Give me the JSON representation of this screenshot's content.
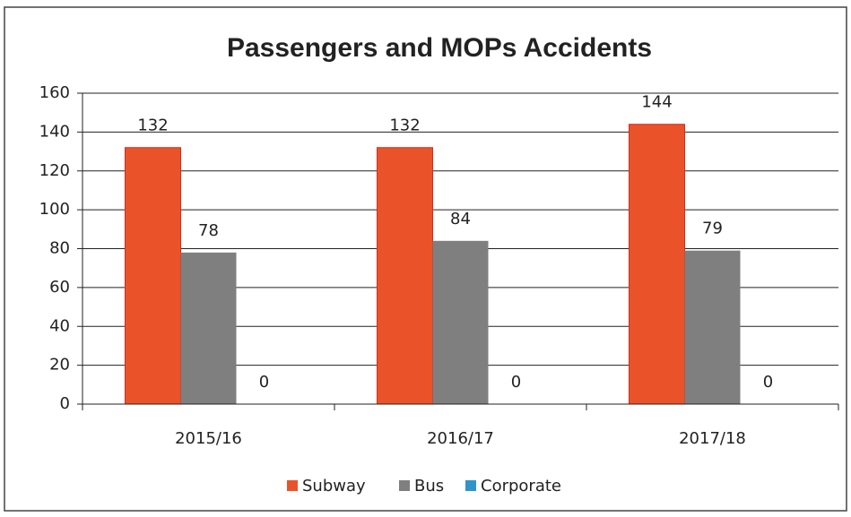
{
  "chart_data": {
    "type": "bar",
    "title": "Passengers and MOPs Accidents",
    "categories": [
      "2015/16",
      "2016/17",
      "2017/18"
    ],
    "series": [
      {
        "name": "Subway",
        "color": "#ea5329",
        "values": [
          132,
          132,
          144
        ]
      },
      {
        "name": "Bus",
        "color": "#7f7f7f",
        "values": [
          78,
          84,
          79
        ]
      },
      {
        "name": "Corporate",
        "color": "#2f95c8",
        "values": [
          0,
          0,
          0
        ]
      }
    ],
    "ylim": [
      0,
      160
    ],
    "yticks": [
      0,
      20,
      40,
      60,
      80,
      100,
      120,
      140,
      160
    ],
    "grid": true,
    "legend": "bottom"
  }
}
